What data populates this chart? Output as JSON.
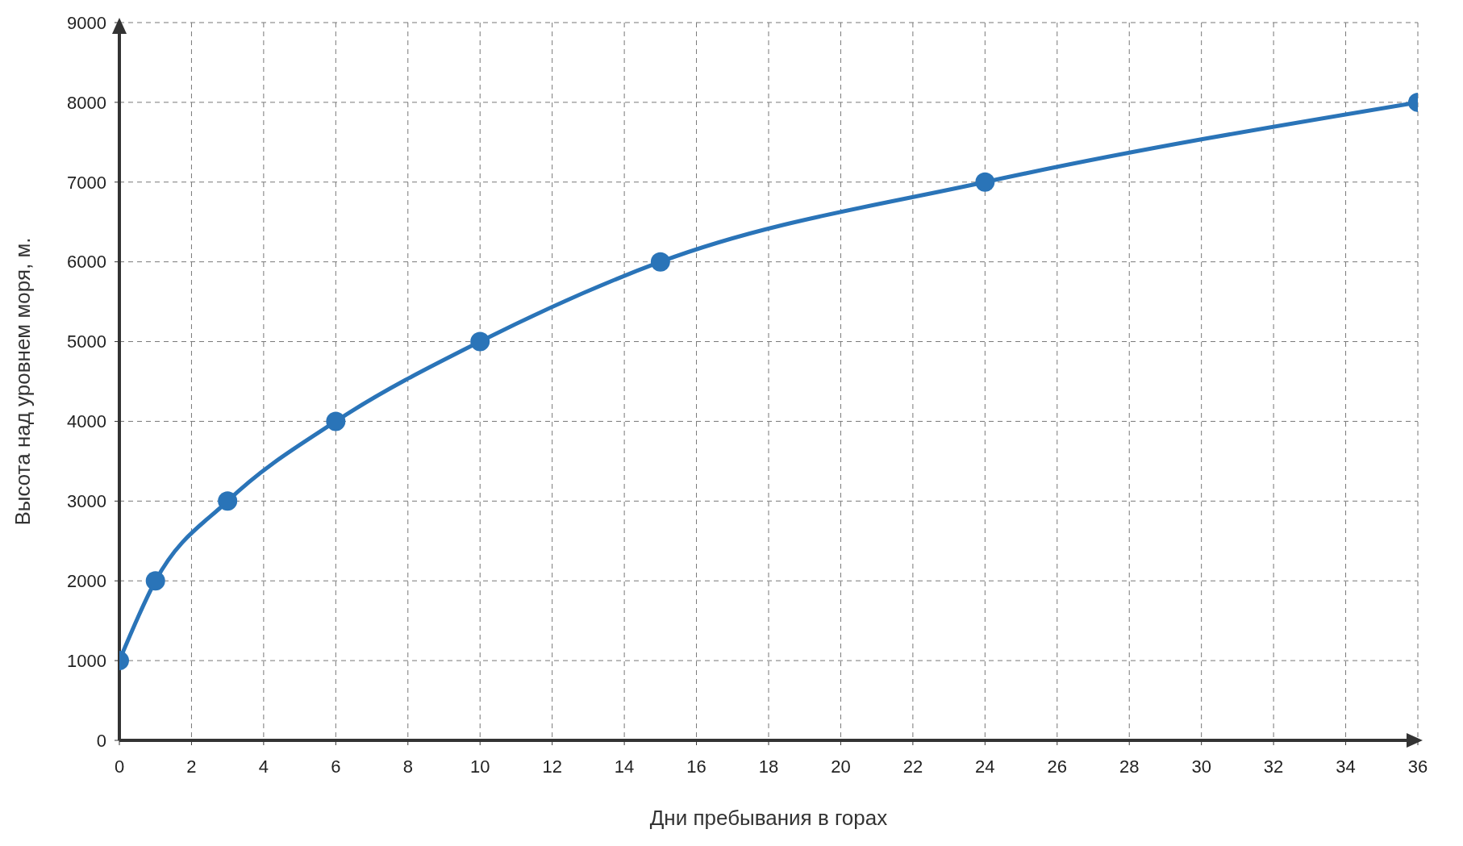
{
  "chart_data": {
    "type": "line",
    "xlabel": "Дни пребывания в горах",
    "ylabel": "Высота над уровнем моря, м.",
    "x": [
      0,
      1,
      3,
      6,
      10,
      15,
      24,
      36
    ],
    "series": [
      {
        "color": "#2a74b8",
        "values": [
          1000,
          2000,
          3000,
          4000,
          5000,
          6000,
          7000,
          8000
        ]
      }
    ],
    "xlim": [
      0,
      36
    ],
    "xticks": [
      0,
      2,
      4,
      6,
      8,
      10,
      12,
      14,
      16,
      18,
      20,
      22,
      24,
      26,
      28,
      30,
      32,
      34,
      36
    ],
    "ylim": [
      0,
      9000
    ],
    "yticks": [
      0,
      1000,
      2000,
      3000,
      4000,
      5000,
      6000,
      7000,
      8000,
      9000
    ],
    "grid": true,
    "marker": "circle",
    "line_style": "solid",
    "legend": false
  }
}
